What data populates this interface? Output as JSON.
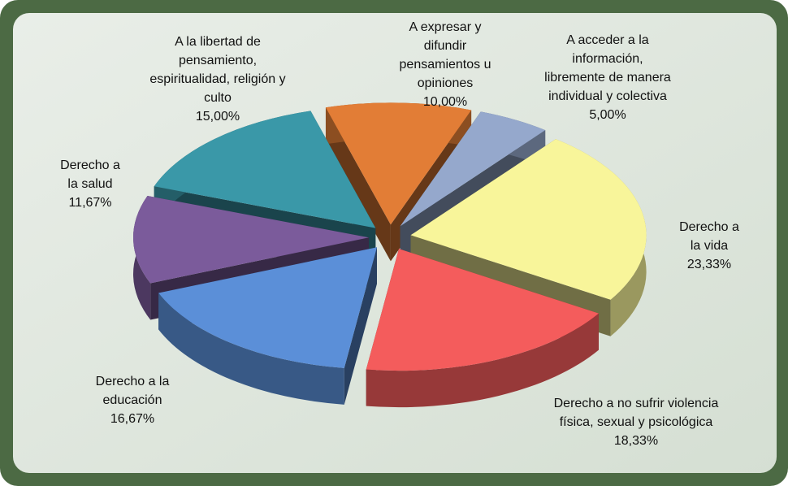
{
  "chart_data": {
    "type": "pie",
    "categories": [
      "A acceder a la información, libremente de manera individual y colectiva",
      "Derecho a la vida",
      "Derecho a no sufrir violencia física, sexual y psicológica",
      "Derecho a la educación",
      "Derecho a la salud",
      "A la libertad de pensamiento, espiritualidad, religión y culto",
      "A expresar y difundir pensamientos u opiniones"
    ],
    "values": [
      5.0,
      23.33,
      18.33,
      16.67,
      11.67,
      15.0,
      10.0
    ],
    "value_labels": [
      "5,00%",
      "23,33%",
      "18,33%",
      "16,67%",
      "11,67%",
      "15,00%",
      "10,00%"
    ],
    "colors": [
      "#95a8cc",
      "#f8f59a",
      "#f45c5c",
      "#5b8fd8",
      "#7b5b9b",
      "#3a98a8",
      "#e27d36"
    ]
  }
}
